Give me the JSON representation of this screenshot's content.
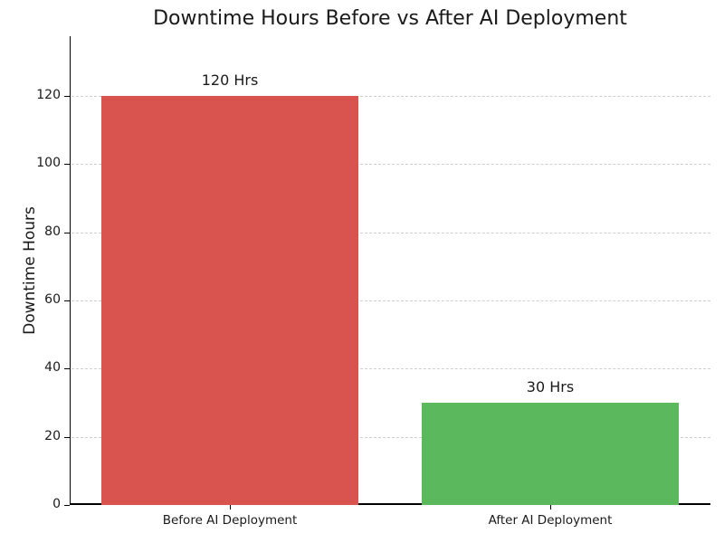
{
  "chart_data": {
    "type": "bar",
    "title": "Downtime Hours Before vs After AI Deployment",
    "xlabel": "",
    "ylabel": "Downtime Hours",
    "categories": [
      "Before AI Deployment",
      "After AI Deployment"
    ],
    "values": [
      120,
      30
    ],
    "bar_labels": [
      "120 Hrs",
      "30 Hrs"
    ],
    "bar_colors": [
      "#d9534f",
      "#5cb85c"
    ],
    "yticks": [
      0,
      20,
      40,
      60,
      80,
      100,
      120
    ],
    "ylim": [
      0,
      137.5
    ],
    "xlim": [
      -0.5,
      1.5
    ],
    "bar_width_fraction": 0.8,
    "grid": "horizontal-dashed",
    "grid_color": "#cfcfcf",
    "spine_color": "#000000",
    "text_color": "#1a1a1a",
    "background_color": "#ffffff",
    "legend": "none"
  }
}
